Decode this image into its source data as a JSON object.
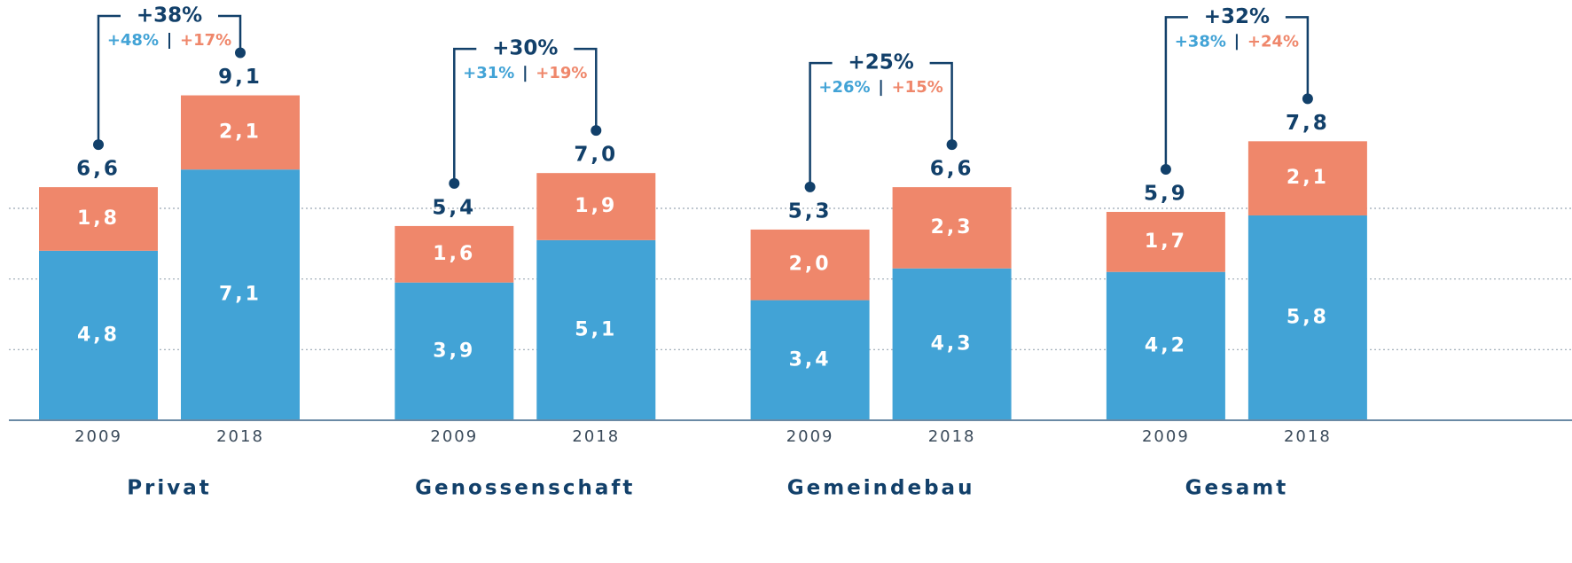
{
  "chart_data": {
    "type": "bar",
    "stacked": true,
    "groups": [
      "Privat",
      "Genossenschaft",
      "Gemeindebau",
      "Gesamt"
    ],
    "categories": [
      "2009",
      "2018",
      "2009",
      "2018",
      "2009",
      "2018",
      "2009",
      "2018"
    ],
    "series": [
      {
        "color": "#42a3d6",
        "values": [
          4.8,
          7.1,
          3.9,
          5.1,
          3.4,
          4.3,
          4.2,
          5.8
        ],
        "value_labels": [
          "4,8",
          "7,1",
          "3,9",
          "5,1",
          "3,4",
          "4,3",
          "4,2",
          "5,8"
        ]
      },
      {
        "color": "#ef876b",
        "values": [
          1.8,
          2.1,
          1.6,
          1.9,
          2.0,
          2.3,
          1.7,
          2.1
        ],
        "value_labels": [
          "1,8",
          "2,1",
          "1,6",
          "1,9",
          "2,0",
          "2,3",
          "1,7",
          "2,1"
        ]
      }
    ],
    "totals": {
      "values": [
        6.6,
        9.1,
        5.4,
        7.0,
        5.3,
        6.6,
        5.9,
        7.8
      ],
      "value_labels": [
        "6,6",
        "9,1",
        "5,4",
        "7,0",
        "5,3",
        "6,6",
        "5,9",
        "7,8"
      ]
    },
    "changes": [
      {
        "total": "+38%",
        "series": [
          "+48%",
          "+17%"
        ]
      },
      {
        "total": "+30%",
        "series": [
          "+31%",
          "+19%"
        ]
      },
      {
        "total": "+25%",
        "series": [
          "+26%",
          "+15%"
        ]
      },
      {
        "total": "+32%",
        "series": [
          "+38%",
          "+24%"
        ]
      }
    ],
    "annotation_color": "#12406a",
    "ylim": [
      0,
      11.9
    ],
    "yticks": [
      2,
      4,
      6
    ],
    "grid": true
  }
}
